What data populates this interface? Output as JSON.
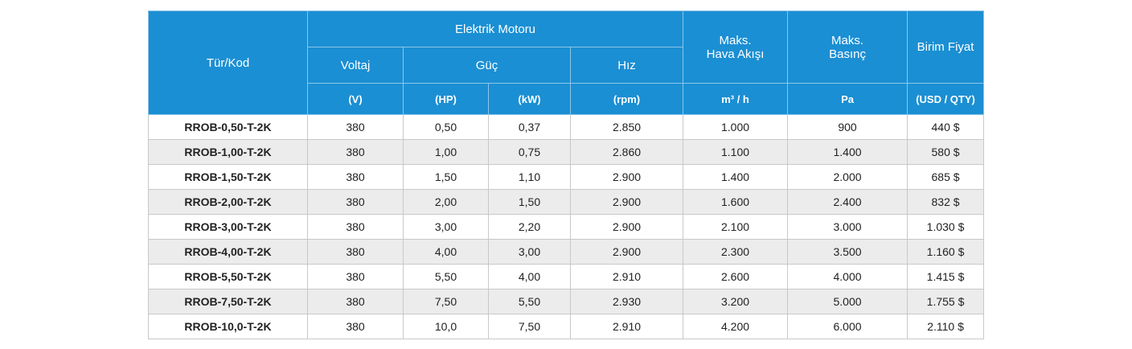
{
  "header": {
    "type_code": "Tür/Kod",
    "electric_motor": "Elektrik Motoru",
    "voltage": "Voltaj",
    "power": "Güç",
    "speed": "Hız",
    "max_airflow": "Maks.\nHava Akışı",
    "max_pressure": "Maks.\nBasınç",
    "unit_price": "Birim Fiyat",
    "units": [
      "(V)",
      "(HP)",
      "(kW)",
      "(rpm)",
      "m³ / h",
      "Pa",
      "(USD / QTY)"
    ]
  },
  "table": {
    "rows": [
      [
        "RROB-0,50-T-2K",
        "380",
        "0,50",
        "0,37",
        "2.850",
        "1.000",
        "900",
        "440 $"
      ],
      [
        "RROB-1,00-T-2K",
        "380",
        "1,00",
        "0,75",
        "2.860",
        "1.100",
        "1.400",
        "580 $"
      ],
      [
        "RROB-1,50-T-2K",
        "380",
        "1,50",
        "1,10",
        "2.900",
        "1.400",
        "2.000",
        "685 $"
      ],
      [
        "RROB-2,00-T-2K",
        "380",
        "2,00",
        "1,50",
        "2.900",
        "1.600",
        "2.400",
        "832 $"
      ],
      [
        "RROB-3,00-T-2K",
        "380",
        "3,00",
        "2,20",
        "2.900",
        "2.100",
        "3.000",
        "1.030 $"
      ],
      [
        "RROB-4,00-T-2K",
        "380",
        "4,00",
        "3,00",
        "2.900",
        "2.300",
        "3.500",
        "1.160 $"
      ],
      [
        "RROB-5,50-T-2K",
        "380",
        "5,50",
        "4,00",
        "2.910",
        "2.600",
        "4.000",
        "1.415 $"
      ],
      [
        "RROB-7,50-T-2K",
        "380",
        "7,50",
        "5,50",
        "2.930",
        "3.200",
        "5.000",
        "1.755 $"
      ],
      [
        "RROB-10,0-T-2K",
        "380",
        "10,0",
        "7,50",
        "2.910",
        "4.200",
        "6.000",
        "2.110 $"
      ]
    ]
  }
}
